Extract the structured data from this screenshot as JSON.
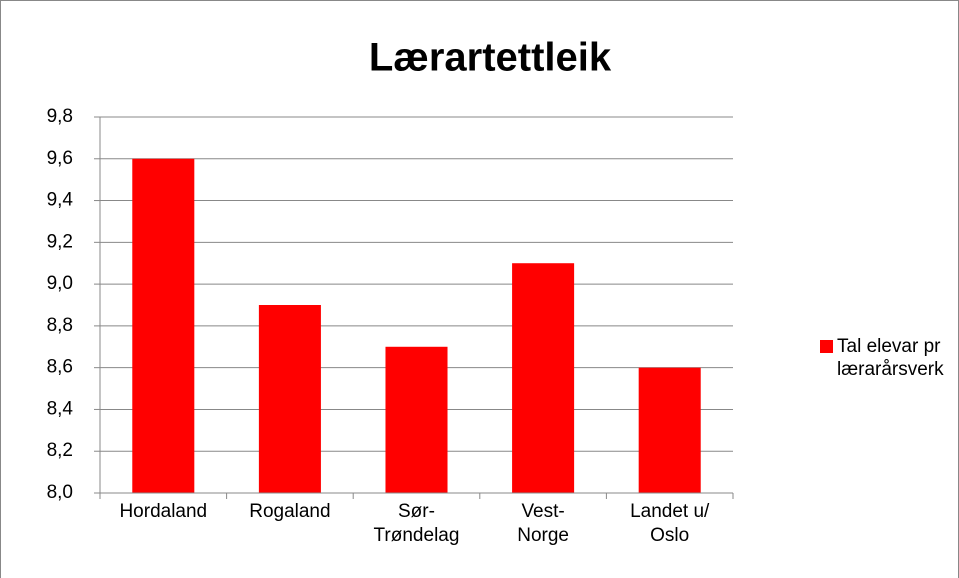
{
  "chart_data": {
    "type": "bar",
    "title": "Lærartettleik",
    "categories": [
      "Hordaland",
      "Rogaland",
      "Sør-Trøndelag",
      "Vest-Norge",
      "Landet u/ Oslo"
    ],
    "series": [
      {
        "name": "Tal elevar pr lærarårsverk",
        "color": "#ff0000",
        "values": [
          9.6,
          8.9,
          8.7,
          9.1,
          8.6
        ]
      }
    ],
    "ylim": [
      8.0,
      9.8
    ],
    "yticks": [
      {
        "value": 8.0,
        "label": "8,0"
      },
      {
        "value": 8.2,
        "label": "8,2"
      },
      {
        "value": 8.4,
        "label": "8,4"
      },
      {
        "value": 8.6,
        "label": "8,6"
      },
      {
        "value": 8.8,
        "label": "8,8"
      },
      {
        "value": 9.0,
        "label": "9,0"
      },
      {
        "value": 9.2,
        "label": "9,2"
      },
      {
        "value": 9.4,
        "label": "9,4"
      },
      {
        "value": 9.6,
        "label": "9,6"
      },
      {
        "value": 9.8,
        "label": "9,8"
      }
    ],
    "grid": true,
    "legend": "right"
  }
}
